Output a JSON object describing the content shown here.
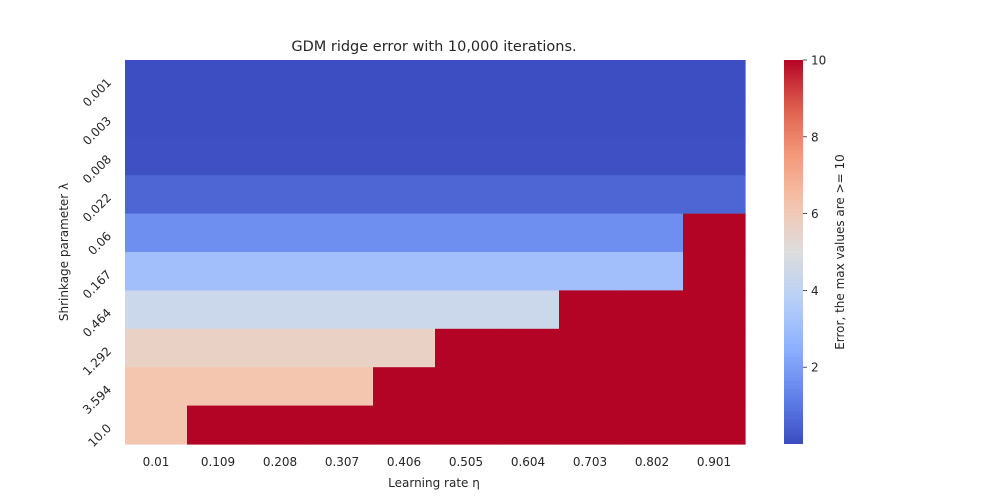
{
  "chart_data": {
    "type": "heatmap",
    "title": "GDM ridge error with 10,000 iterations.",
    "xlabel": "Learning rate η",
    "ylabel": "Shrinkage parameter λ",
    "x_categories": [
      "0.01",
      "0.109",
      "0.208",
      "0.307",
      "0.406",
      "0.505",
      "0.604",
      "0.703",
      "0.802",
      "0.901"
    ],
    "y_categories": [
      "0.001",
      "0.003",
      "0.008",
      "0.022",
      "0.06",
      "0.167",
      "0.464",
      "1.292",
      "3.594",
      "10.0"
    ],
    "values": [
      [
        0.05,
        0.05,
        0.05,
        0.05,
        0.05,
        0.05,
        0.05,
        0.05,
        0.05,
        0.05
      ],
      [
        0.05,
        0.05,
        0.05,
        0.05,
        0.05,
        0.05,
        0.05,
        0.05,
        0.05,
        0.05
      ],
      [
        0.1,
        0.1,
        0.1,
        0.1,
        0.1,
        0.1,
        0.1,
        0.1,
        0.1,
        0.1
      ],
      [
        0.6,
        0.6,
        0.6,
        0.6,
        0.6,
        0.6,
        0.6,
        0.6,
        0.6,
        0.6
      ],
      [
        1.6,
        1.6,
        1.6,
        1.6,
        1.6,
        1.6,
        1.6,
        1.6,
        1.6,
        10
      ],
      [
        3.1,
        3.1,
        3.1,
        3.1,
        3.1,
        3.1,
        3.1,
        3.1,
        3.1,
        10
      ],
      [
        4.4,
        4.4,
        4.4,
        4.4,
        4.4,
        4.4,
        4.4,
        10,
        10,
        10
      ],
      [
        5.6,
        5.6,
        5.6,
        5.6,
        5.6,
        10,
        10,
        10,
        10,
        10
      ],
      [
        6.2,
        6.2,
        6.2,
        6.2,
        10,
        10,
        10,
        10,
        10,
        10
      ],
      [
        6.2,
        10,
        10,
        10,
        10,
        10,
        10,
        10,
        10,
        10
      ]
    ],
    "colormap": "coolwarm",
    "vmin": 0,
    "vmax": 10,
    "colorbar": {
      "label": "Error, the max values are >= 10",
      "ticks": [
        2,
        4,
        6,
        8,
        10
      ]
    },
    "grid": false,
    "legend": "colorbar-right"
  }
}
